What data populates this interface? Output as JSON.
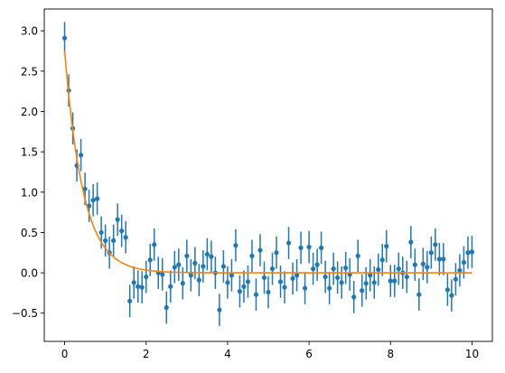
{
  "chart_data": {
    "type": "scatter",
    "title": "",
    "xlabel": "",
    "ylabel": "",
    "xlim": [
      -0.5,
      10.5
    ],
    "ylim": [
      -0.85,
      3.27
    ],
    "xticks": [
      0,
      2,
      4,
      6,
      8,
      10
    ],
    "xtick_labels": [
      "0",
      "2",
      "4",
      "6",
      "8",
      "10"
    ],
    "yticks": [
      -0.5,
      0.0,
      0.5,
      1.0,
      1.5,
      2.0,
      2.5,
      3.0
    ],
    "ytick_labels": [
      "−0.5",
      "0.0",
      "0.5",
      "1.0",
      "1.5",
      "2.0",
      "2.5",
      "3.0"
    ],
    "grid": false,
    "legend": "none",
    "series": [
      {
        "kind": "errorbar",
        "color": "#1f77b4",
        "yerr": 0.2,
        "x": [
          0.0,
          0.1,
          0.2,
          0.3,
          0.4,
          0.5,
          0.6,
          0.7,
          0.8,
          0.9,
          1.0,
          1.1,
          1.2,
          1.3,
          1.4,
          1.5,
          1.6,
          1.7,
          1.8,
          1.9,
          2.0,
          2.1,
          2.2,
          2.3,
          2.4,
          2.5,
          2.6,
          2.7,
          2.8,
          2.9,
          3.0,
          3.1,
          3.2,
          3.3,
          3.4,
          3.5,
          3.6,
          3.7,
          3.8,
          3.9,
          4.0,
          4.1,
          4.2,
          4.3,
          4.4,
          4.5,
          4.6,
          4.7,
          4.8,
          4.9,
          5.0,
          5.1,
          5.2,
          5.3,
          5.4,
          5.5,
          5.6,
          5.7,
          5.8,
          5.9,
          6.0,
          6.1,
          6.2,
          6.3,
          6.4,
          6.5,
          6.6,
          6.7,
          6.8,
          6.9,
          7.0,
          7.1,
          7.2,
          7.3,
          7.4,
          7.5,
          7.6,
          7.7,
          7.8,
          7.9,
          8.0,
          8.1,
          8.2,
          8.3,
          8.4,
          8.5,
          8.6,
          8.7,
          8.8,
          8.9,
          9.0,
          9.1,
          9.2,
          9.3,
          9.4,
          9.5,
          9.6,
          9.7,
          9.8,
          9.9,
          10.0
        ],
        "y": [
          2.91,
          2.26,
          1.79,
          1.33,
          1.46,
          1.04,
          0.83,
          0.9,
          0.92,
          0.5,
          0.4,
          0.25,
          0.4,
          0.66,
          0.52,
          0.44,
          -0.35,
          -0.12,
          -0.17,
          -0.18,
          -0.05,
          0.16,
          0.35,
          0.0,
          -0.02,
          -0.43,
          -0.17,
          0.07,
          0.1,
          -0.13,
          0.21,
          -0.03,
          0.12,
          -0.09,
          0.08,
          0.23,
          0.2,
          0.0,
          -0.46,
          0.08,
          -0.12,
          -0.03,
          0.34,
          -0.23,
          -0.17,
          -0.11,
          0.21,
          -0.27,
          0.28,
          -0.06,
          -0.24,
          0.05,
          0.25,
          -0.11,
          -0.18,
          0.37,
          -0.07,
          -0.03,
          0.31,
          -0.19,
          0.32,
          0.05,
          0.1,
          0.31,
          -0.05,
          -0.19,
          0.05,
          -0.06,
          -0.12,
          0.06,
          -0.02,
          -0.3,
          0.21,
          -0.22,
          -0.13,
          -0.03,
          -0.12,
          0.04,
          0.16,
          0.33,
          -0.1,
          -0.1,
          0.05,
          0.0,
          -0.05,
          0.38,
          0.1,
          -0.27,
          0.11,
          0.07,
          0.25,
          0.35,
          0.17,
          0.17,
          -0.21,
          -0.28,
          -0.08,
          0.03,
          0.13,
          0.25,
          0.26
        ]
      },
      {
        "kind": "line",
        "color": "#ff7f0e",
        "function": "2.75 * exp(-2.2 * x)",
        "a": 2.75,
        "b": 2.2,
        "x_range": [
          0,
          10
        ]
      }
    ]
  }
}
